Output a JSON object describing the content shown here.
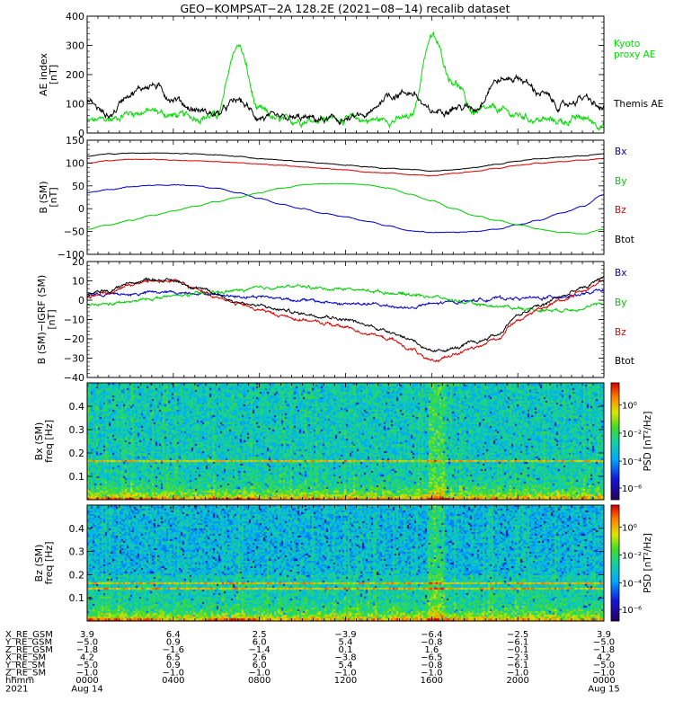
{
  "title": "GEO−KOMPSAT−2A 128.2E (2021−08−14) recalib dataset",
  "chart_data": [
    {
      "type": "line",
      "panel": "ae-index",
      "ylabel": "AE index",
      "yunit": "[nT]",
      "ylim": [
        0,
        400
      ],
      "yticks": [
        0,
        100,
        200,
        300,
        400
      ],
      "x_hours": [
        0,
        1,
        2,
        3,
        4,
        5,
        6,
        7,
        8,
        9,
        10,
        11,
        12,
        13,
        14,
        15,
        16,
        17,
        18,
        19,
        20,
        21,
        22,
        23,
        24
      ],
      "series": [
        {
          "name": "Kyoto\nproxy AE",
          "color": "#00dd00",
          "values": [
            40,
            45,
            70,
            75,
            60,
            55,
            60,
            300,
            75,
            40,
            45,
            50,
            50,
            45,
            45,
            50,
            330,
            180,
            70,
            80,
            60,
            45,
            40,
            50,
            30
          ]
        },
        {
          "name": "Themis AE",
          "color": "#000000",
          "values": [
            110,
            60,
            140,
            165,
            120,
            80,
            65,
            110,
            55,
            45,
            50,
            45,
            45,
            60,
            130,
            140,
            70,
            90,
            85,
            180,
            190,
            140,
            90,
            120,
            80
          ]
        }
      ]
    },
    {
      "type": "line",
      "panel": "b-sm",
      "ylabel": "B (SM)",
      "yunit": "[nT]",
      "ylim": [
        -100,
        150
      ],
      "yticks": [
        -100,
        -50,
        0,
        50,
        100,
        150
      ],
      "x_hours": [
        0,
        1,
        2,
        3,
        4,
        5,
        6,
        7,
        8,
        9,
        10,
        11,
        12,
        13,
        14,
        15,
        16,
        17,
        18,
        19,
        20,
        21,
        22,
        23,
        24
      ],
      "series": [
        {
          "name": "Bx",
          "color": "#0000cc",
          "values": [
            35,
            42,
            48,
            52,
            52,
            50,
            45,
            35,
            22,
            10,
            0,
            -10,
            -18,
            -28,
            -38,
            -48,
            -52,
            -52,
            -50,
            -45,
            -35,
            -25,
            -10,
            5,
            30
          ]
        },
        {
          "name": "By",
          "color": "#00cc00",
          "values": [
            -45,
            -35,
            -25,
            -15,
            -5,
            5,
            15,
            25,
            35,
            45,
            52,
            55,
            55,
            52,
            45,
            32,
            18,
            0,
            -15,
            -25,
            -35,
            -45,
            -52,
            -55,
            -45
          ]
        },
        {
          "name": "Bz",
          "color": "#dd0000",
          "values": [
            100,
            105,
            108,
            108,
            106,
            105,
            103,
            100,
            98,
            95,
            92,
            88,
            85,
            80,
            78,
            75,
            72,
            78,
            82,
            88,
            95,
            100,
            103,
            106,
            110
          ]
        },
        {
          "name": "Btot",
          "color": "#000000",
          "values": [
            115,
            120,
            122,
            122,
            121,
            120,
            118,
            114,
            110,
            107,
            103,
            99,
            96,
            92,
            88,
            86,
            83,
            85,
            90,
            97,
            104,
            110,
            113,
            116,
            120
          ]
        }
      ]
    },
    {
      "type": "line",
      "panel": "b-minus-igrf",
      "ylabel": "B (SM)−IGRF (SM)",
      "yunit": "[nT]",
      "ylim": [
        -40,
        20
      ],
      "yticks": [
        -40,
        -30,
        -20,
        -10,
        0,
        10,
        20
      ],
      "x_hours": [
        0,
        1,
        2,
        3,
        4,
        5,
        6,
        7,
        8,
        9,
        10,
        11,
        12,
        13,
        14,
        15,
        16,
        17,
        18,
        19,
        20,
        21,
        22,
        23,
        24
      ],
      "series": [
        {
          "name": "Bx",
          "color": "#0000cc",
          "values": [
            3,
            3,
            3,
            4,
            4,
            4,
            3,
            2,
            2,
            1,
            0,
            -1,
            -2,
            -2,
            -3,
            -4,
            -2,
            -1,
            0,
            1,
            1,
            1,
            2,
            3,
            5
          ]
        },
        {
          "name": "By",
          "color": "#00cc00",
          "values": [
            -3,
            -2,
            -1,
            1,
            2,
            3,
            4,
            5,
            6,
            7,
            7,
            6,
            6,
            5,
            4,
            3,
            2,
            0,
            -2,
            -3,
            -4,
            -5,
            -5,
            -4,
            -2
          ]
        },
        {
          "name": "Bz",
          "color": "#dd0000",
          "values": [
            2,
            4,
            8,
            10,
            10,
            6,
            2,
            -2,
            -5,
            -8,
            -10,
            -12,
            -14,
            -17,
            -20,
            -25,
            -32,
            -28,
            -25,
            -20,
            -10,
            -5,
            0,
            5,
            10
          ]
        },
        {
          "name": "Btot",
          "color": "#000000",
          "values": [
            3,
            5,
            9,
            11,
            10,
            7,
            3,
            -1,
            -3,
            -5,
            -7,
            -8,
            -10,
            -13,
            -16,
            -20,
            -27,
            -25,
            -22,
            -18,
            -8,
            -3,
            2,
            6,
            12
          ]
        }
      ]
    },
    {
      "type": "heatmap",
      "panel": "bx-spectrogram",
      "ylabel": "Bx (SM)",
      "ylabel2": "freq [Hz]",
      "ylim": [
        0,
        0.5
      ],
      "yticks": [
        0.1,
        0.2,
        0.3,
        0.4
      ],
      "colorbar": {
        "label": "PSD [nT²/Hz]",
        "tick_labels": [
          "10⁰",
          "10⁻²",
          "10⁻⁴",
          "10⁻⁶"
        ],
        "tick_values": [
          1,
          0.01,
          0.0001,
          1e-06
        ]
      },
      "features": {
        "band_hz": [
          0.17
        ],
        "bright_hour": 16.2
      }
    },
    {
      "type": "heatmap",
      "panel": "bz-spectrogram",
      "ylabel": "Bz (SM)",
      "ylabel2": "freq [Hz]",
      "ylim": [
        0,
        0.5
      ],
      "yticks": [
        0.1,
        0.2,
        0.3,
        0.4
      ],
      "colorbar": {
        "label": "PSD [nT²/Hz]",
        "tick_labels": [
          "10⁰",
          "10⁻²",
          "10⁻⁴",
          "10⁻⁶"
        ],
        "tick_values": [
          1,
          0.01,
          0.0001,
          1e-06
        ]
      },
      "features": {
        "band_hz": [
          0.14,
          0.17
        ],
        "bright_hour": 16.2
      }
    }
  ],
  "ephemeris": {
    "rows": [
      {
        "label": "X_RE_GSM",
        "values": [
          "3.9",
          "6.4",
          "2.5",
          "−3.9",
          "−6.4",
          "−2.5",
          "3.9"
        ]
      },
      {
        "label": "Y_RE_GSM",
        "values": [
          "−5.0",
          "0.9",
          "6.0",
          "5.4",
          "−0.8",
          "−6.1",
          "−5.0"
        ]
      },
      {
        "label": "Z_RE_GSM",
        "values": [
          "−1.8",
          "−1.6",
          "−1.4",
          "0.1",
          "1.6",
          "−0.1",
          "−1.8"
        ]
      },
      {
        "label": "X_RE_SM",
        "values": [
          "4.2",
          "6.5",
          "2.6",
          "−3.8",
          "−6.5",
          "−2.3",
          "4.2"
        ]
      },
      {
        "label": "Y_RE_SM",
        "values": [
          "−5.0",
          "0.9",
          "6.0",
          "5.4",
          "−0.8",
          "−6.1",
          "−5.0"
        ]
      },
      {
        "label": "Z_RE_SM",
        "values": [
          "−1.0",
          "−1.0",
          "−1.0",
          "−1.0",
          "−1.0",
          "−1.0",
          "−1.0"
        ]
      }
    ],
    "time_label": "hhmm",
    "time_values": [
      "0000",
      "0400",
      "0800",
      "1200",
      "1600",
      "2000",
      "0000"
    ],
    "date_label": "2021",
    "date_values": [
      "Aug 14",
      "Aug 15"
    ],
    "tick_hours": [
      0,
      4,
      8,
      12,
      16,
      20,
      24
    ]
  }
}
